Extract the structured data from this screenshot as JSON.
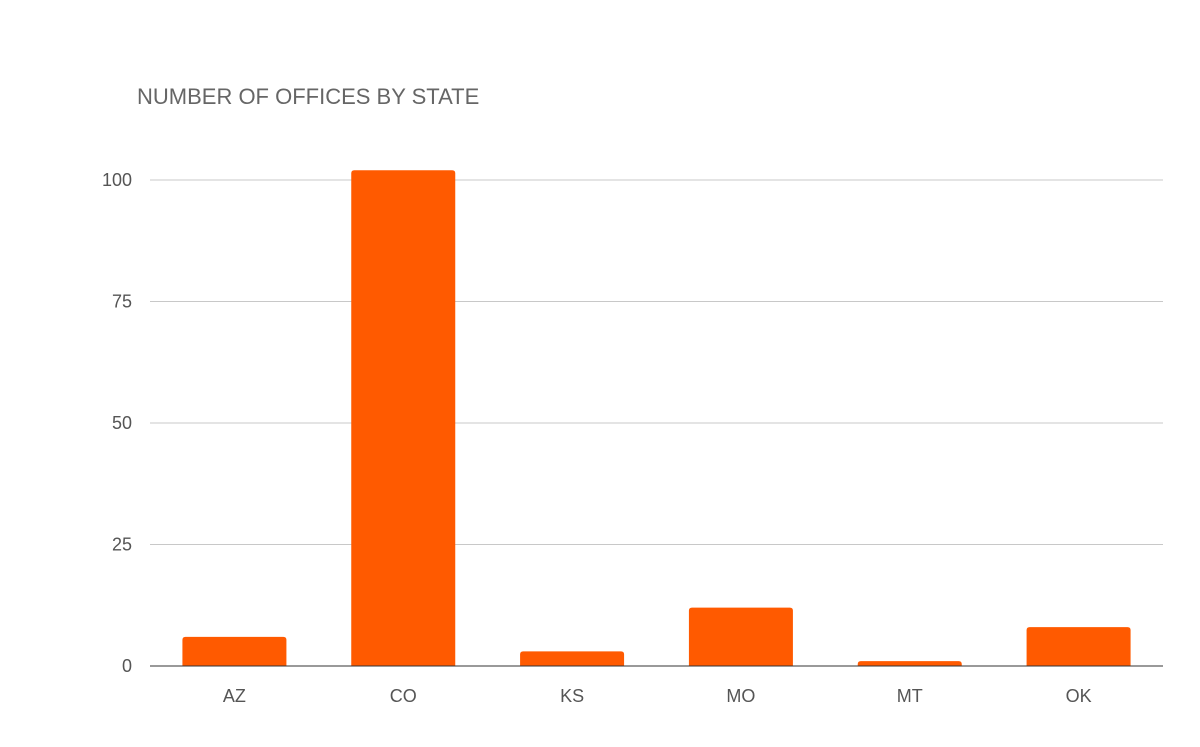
{
  "chart_data": {
    "type": "bar",
    "title": "NUMBER OF OFFICES BY STATE",
    "xlabel": "",
    "ylabel": "",
    "categories": [
      "AZ",
      "CO",
      "KS",
      "MO",
      "MT",
      "OK"
    ],
    "values": [
      6,
      102,
      3,
      12,
      1,
      8
    ],
    "ylim": [
      0,
      110
    ],
    "yticks": [
      0,
      25,
      50,
      75,
      100
    ],
    "grid": true,
    "legend": "none",
    "bar_color": "#ff5a00"
  }
}
